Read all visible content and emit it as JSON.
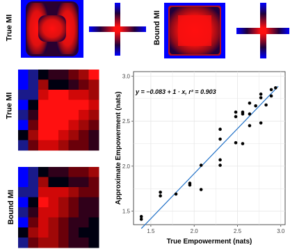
{
  "panel_labels": {
    "true_mi": "True MI",
    "bound_mi": "Bound MI"
  },
  "heatmaps": {
    "colors": {
      "low": "#0000ff",
      "high": "#ff0000",
      "dark": "#000000"
    },
    "row_labels": [
      "True MI",
      "Bound MI"
    ]
  },
  "chart_data": {
    "type": "scatter",
    "title": "",
    "xlabel": "True Empowerment (nats)",
    "ylabel": "Approximate Empowerment (nats)",
    "xlim": [
      1.3,
      3.05
    ],
    "ylim": [
      1.35,
      3.05
    ],
    "xticks": [
      "1.5",
      "2.0",
      "2.5",
      "3.0"
    ],
    "yticks": [
      "1.5",
      "2.0",
      "2.5",
      "3.0"
    ],
    "grid": true,
    "fit_equation": "y = −0.083 + 1 · x,  r² = 0.903",
    "fit": {
      "intercept": -0.083,
      "slope": 1.0,
      "r2": 0.903,
      "color": "#2171c7"
    },
    "points": [
      {
        "x": 1.39,
        "y": 1.41
      },
      {
        "x": 1.39,
        "y": 1.44
      },
      {
        "x": 1.61,
        "y": 1.67
      },
      {
        "x": 1.61,
        "y": 1.71
      },
      {
        "x": 1.79,
        "y": 1.69
      },
      {
        "x": 1.95,
        "y": 1.79
      },
      {
        "x": 1.95,
        "y": 1.81
      },
      {
        "x": 2.08,
        "y": 1.74
      },
      {
        "x": 2.08,
        "y": 2.01
      },
      {
        "x": 2.3,
        "y": 2.01
      },
      {
        "x": 2.3,
        "y": 2.07
      },
      {
        "x": 2.3,
        "y": 2.3
      },
      {
        "x": 2.3,
        "y": 2.41
      },
      {
        "x": 2.48,
        "y": 2.26
      },
      {
        "x": 2.48,
        "y": 2.55
      },
      {
        "x": 2.48,
        "y": 2.6
      },
      {
        "x": 2.56,
        "y": 2.25
      },
      {
        "x": 2.56,
        "y": 2.58
      },
      {
        "x": 2.56,
        "y": 2.6
      },
      {
        "x": 2.64,
        "y": 2.45
      },
      {
        "x": 2.64,
        "y": 2.58
      },
      {
        "x": 2.64,
        "y": 2.7
      },
      {
        "x": 2.71,
        "y": 2.67
      },
      {
        "x": 2.77,
        "y": 2.48
      },
      {
        "x": 2.77,
        "y": 2.76
      },
      {
        "x": 2.77,
        "y": 2.8
      },
      {
        "x": 2.83,
        "y": 2.68
      },
      {
        "x": 2.89,
        "y": 2.78
      },
      {
        "x": 2.89,
        "y": 2.85
      },
      {
        "x": 2.94,
        "y": 2.87
      }
    ],
    "point_color": "#000000",
    "x_series_name": ""
  }
}
